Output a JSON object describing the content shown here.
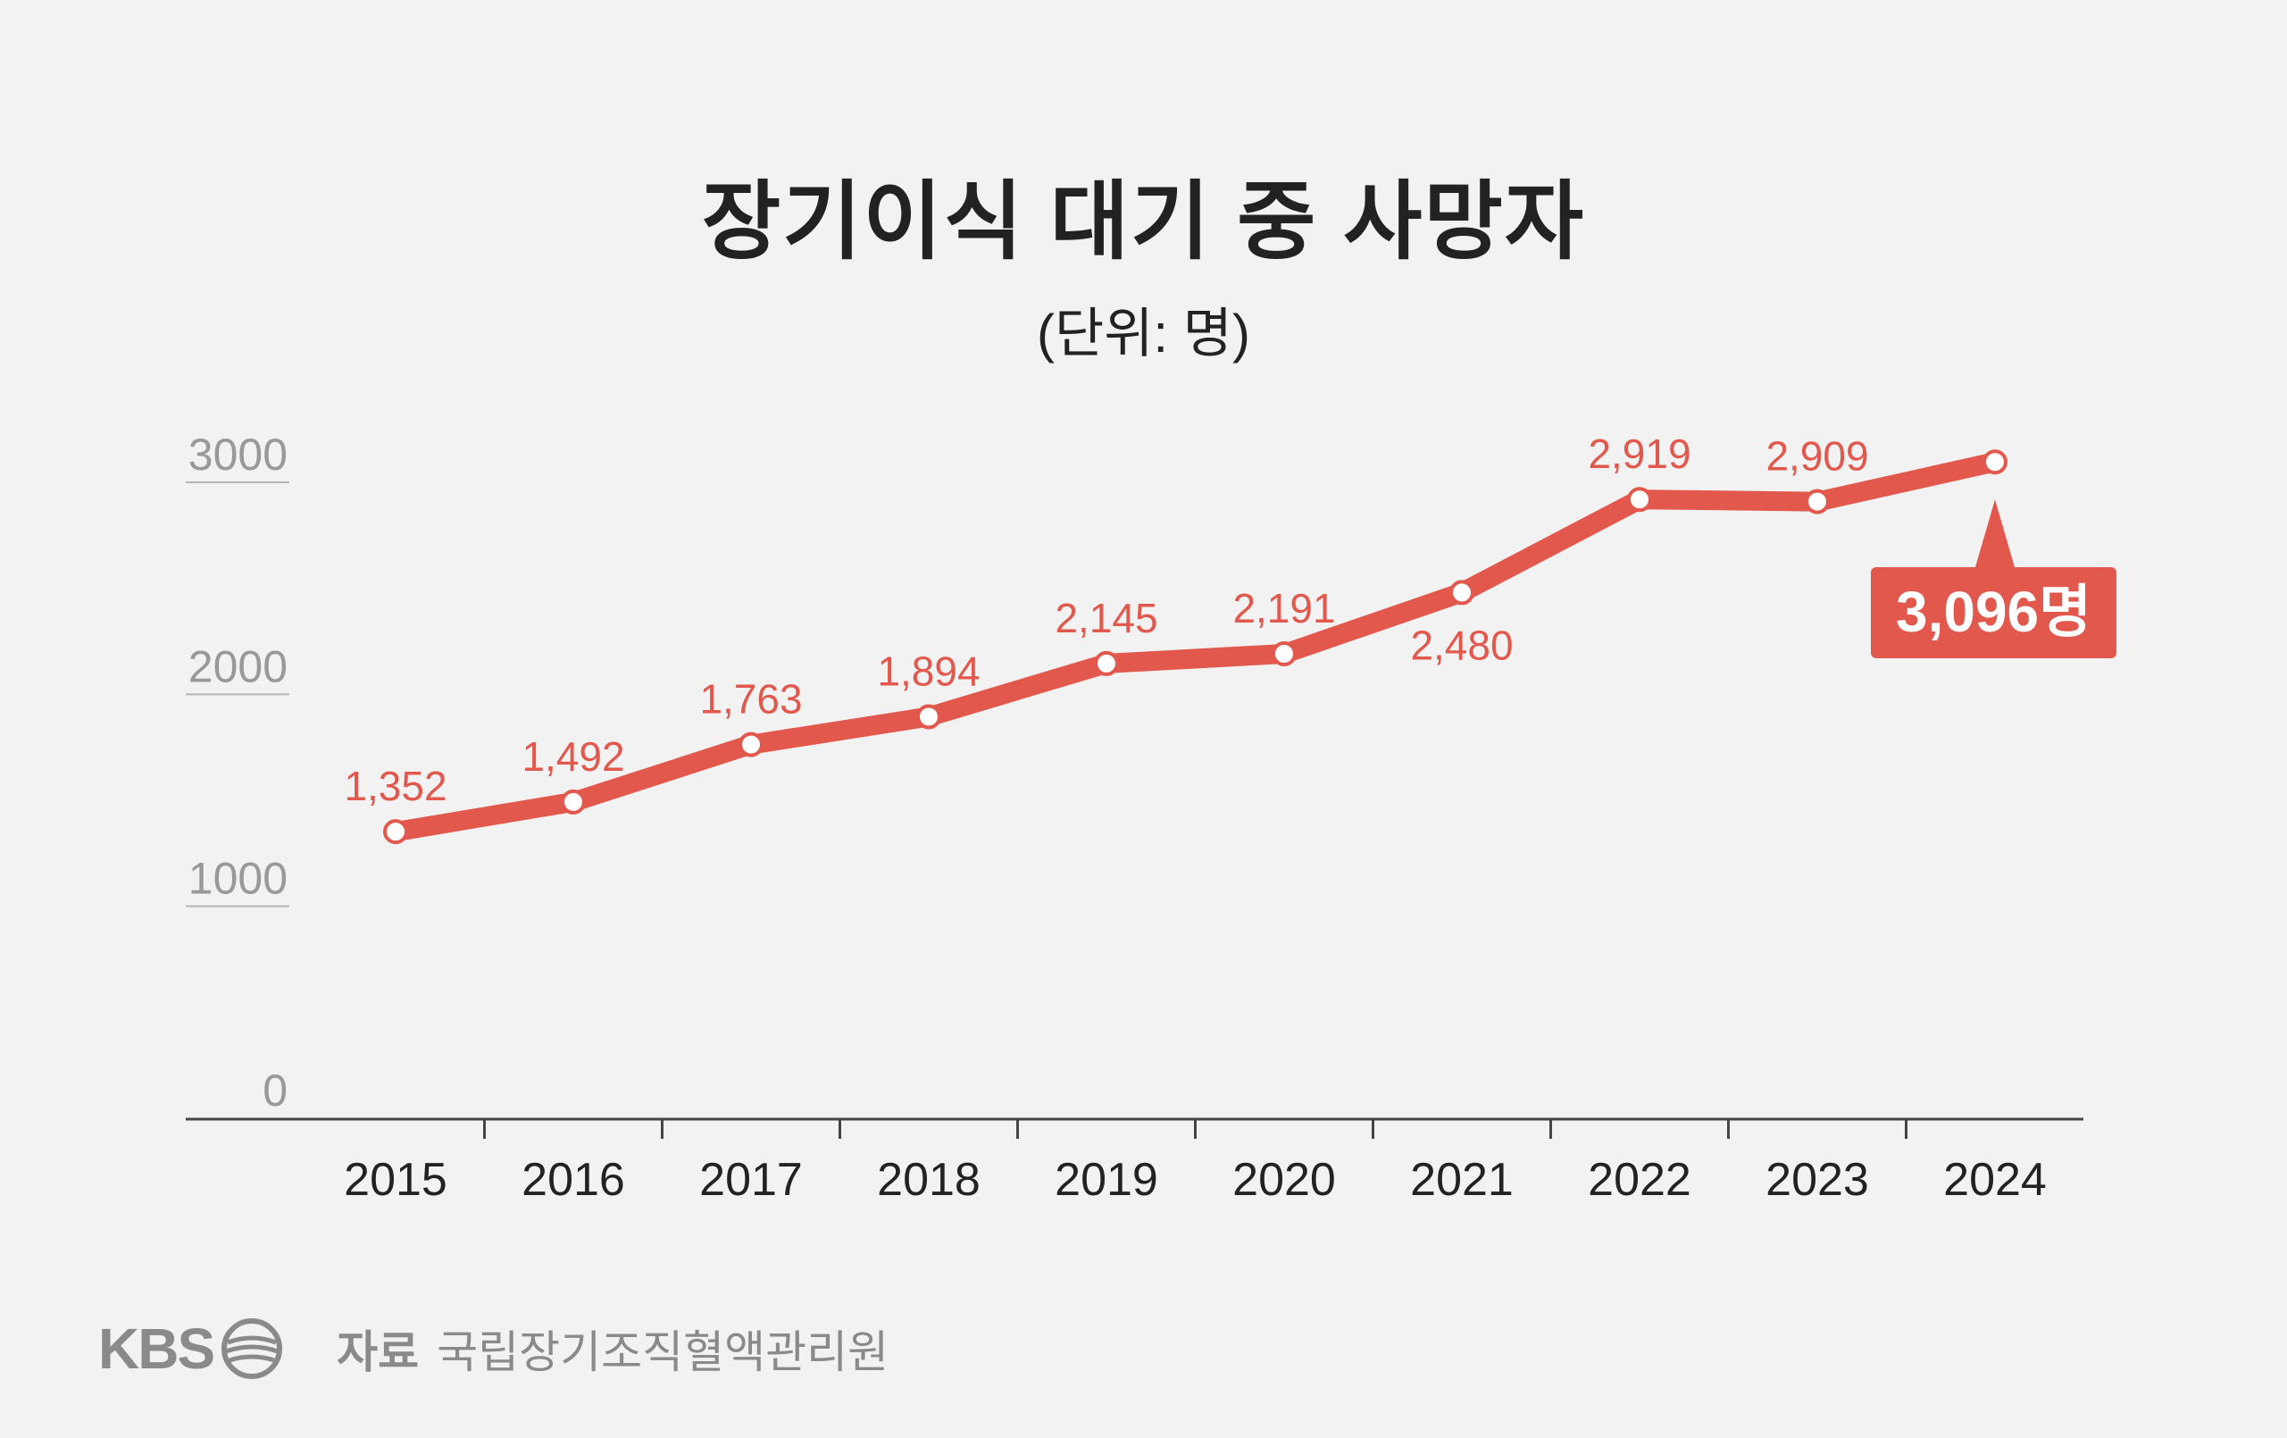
{
  "header": {
    "title": "장기이식 대기 중 사망자",
    "subtitle": "(단위: 명)"
  },
  "footer": {
    "logo_text": "KBS",
    "source_label": "자료",
    "source_name": "국립장기조직혈액관리원"
  },
  "colors": {
    "line": "#e2584c",
    "label": "#e2584c",
    "axis_text": "#999999",
    "category_text": "#222222",
    "background": "#f2f2f2"
  },
  "chart_data": {
    "type": "line",
    "title": "장기이식 대기 중 사망자",
    "subtitle": "(단위: 명)",
    "categories": [
      "2015",
      "2016",
      "2017",
      "2018",
      "2019",
      "2020",
      "2021",
      "2022",
      "2023",
      "2024"
    ],
    "series": [
      {
        "values": [
          1352,
          1492,
          1763,
          1894,
          2145,
          2191,
          2480,
          2919,
          2909,
          3096
        ]
      }
    ],
    "data_labels": [
      "1,352",
      "1,492",
      "1,763",
      "1,894",
      "2,145",
      "2,191",
      "2,480",
      "2,919",
      "2,909",
      "3,096명"
    ],
    "yticks": [
      "0",
      "1000",
      "2000",
      "3000"
    ],
    "ylim": [
      0,
      3000
    ],
    "grid": false,
    "highlight": {
      "index": 9,
      "label": "3,096명"
    }
  }
}
